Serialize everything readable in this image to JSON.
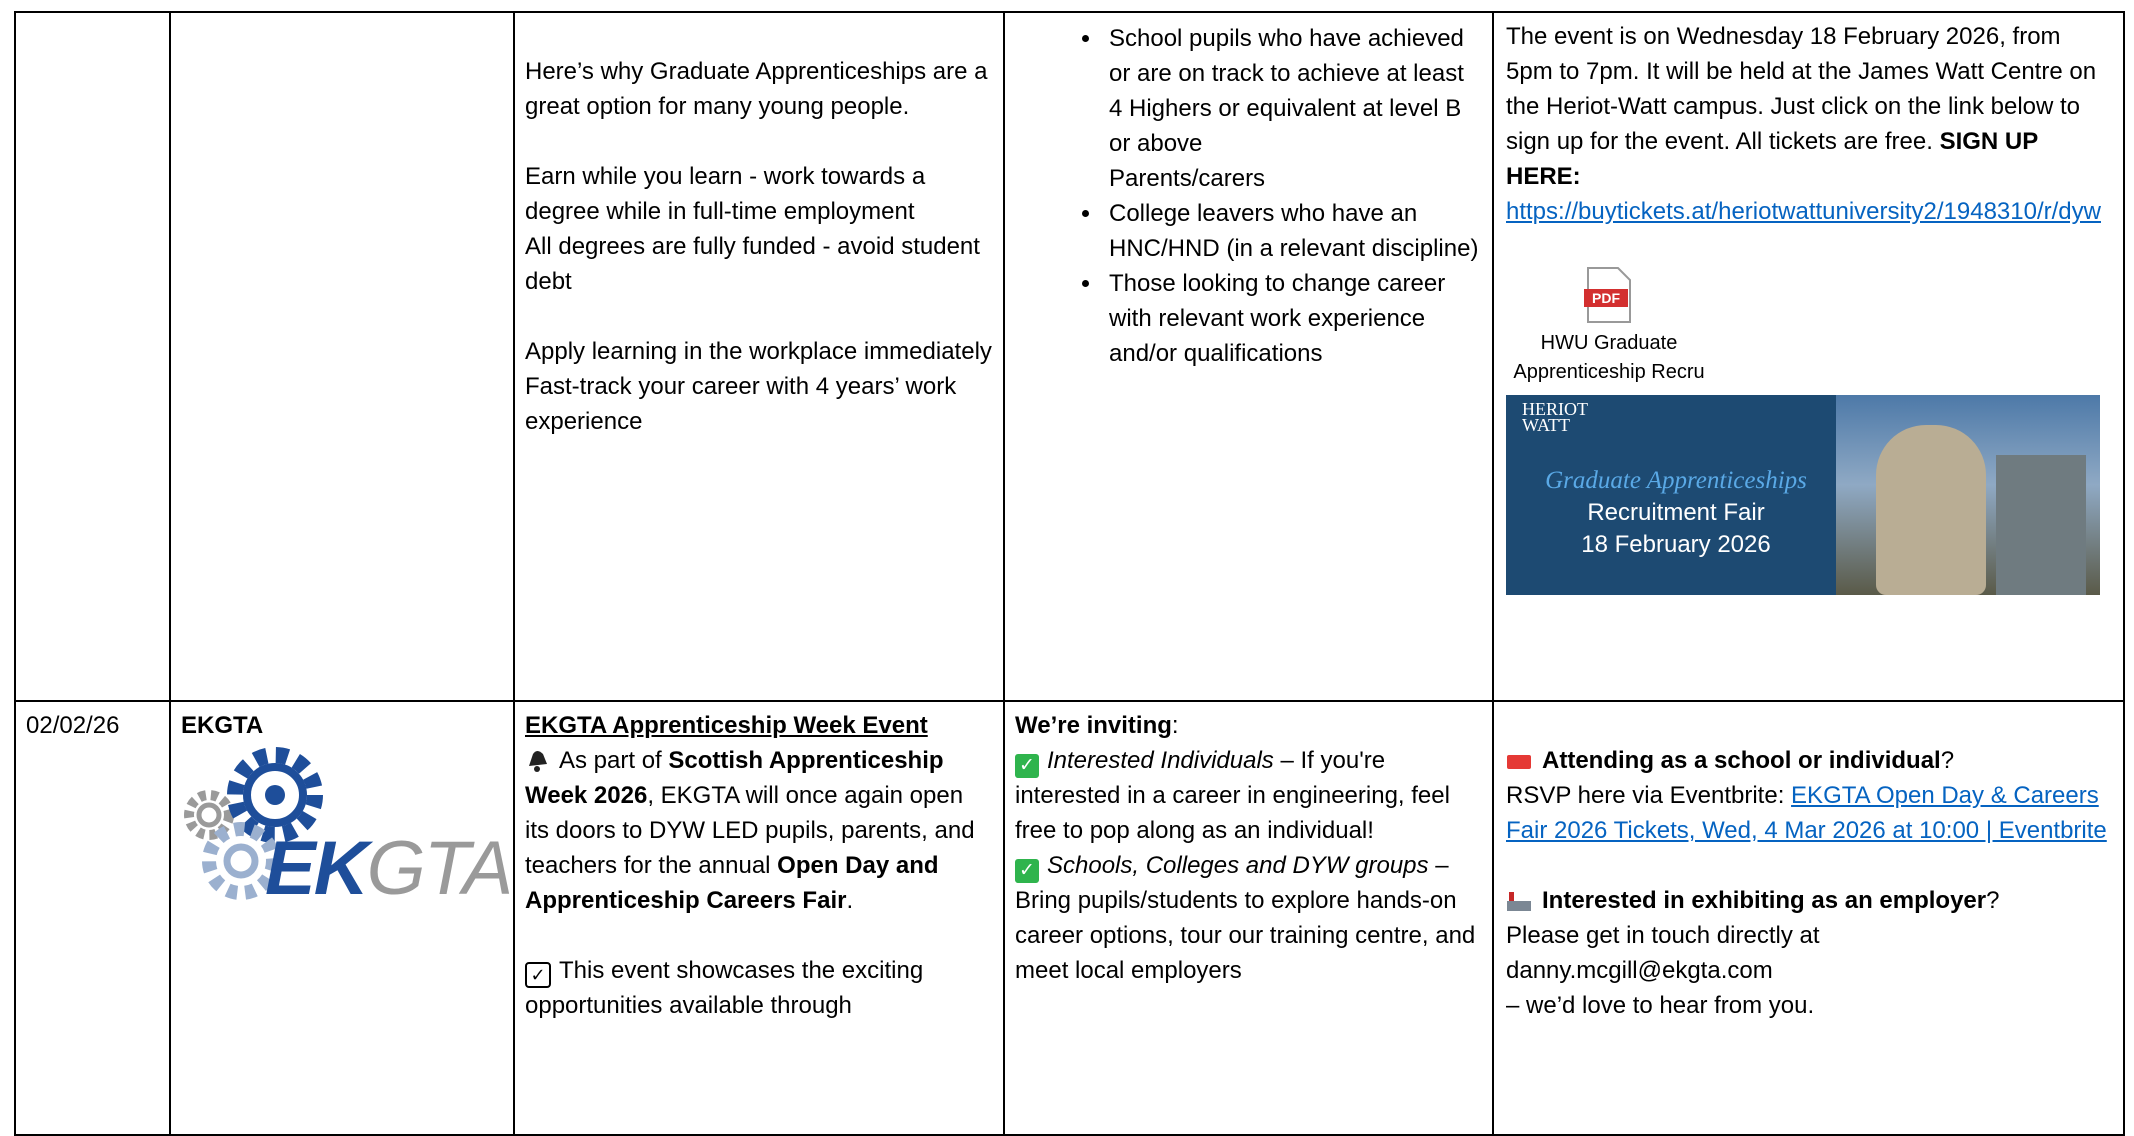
{
  "table": {
    "rows": [
      {
        "description": [
          "Here’s why Graduate Apprenticeships are a great option for many young people.",
          "Earn while you learn - work towards a degree while in full-time employment",
          "All degrees are fully funded - avoid student debt",
          "Apply learning in the workplace immediately",
          "Fast-track your career with 4 years’ work experience"
        ],
        "eligibility": [
          [
            "School pupils who have achieved or are on track to achieve at least 4 Highers or equivalent at level B or above",
            "Parents/carers"
          ],
          [
            "College leavers who have an HNC/HND (in a relevant discipline)"
          ],
          [
            "Those looking to change career with relevant work experience and/or qualifications"
          ]
        ],
        "details": {
          "text": "The event is on Wednesday 18 February 2026, from 5pm to 7pm. It will be held at the James Watt Centre on the Heriot-Watt campus. Just click on the link below to sign up for the event. All tickets are free. ",
          "signup": "SIGN UP HERE:",
          "link": "https://buytickets.at/heriotwattuniversity2/1948310/r/dyw",
          "attachment_type": "PDF",
          "attachment": "HWU Graduate Apprenticeship Recru",
          "banner": {
            "logo": [
              "HERIOT",
              "WATT"
            ],
            "subtitle": "Graduate Apprenticeships",
            "lines": [
              "Recruitment Fair",
              "18 February 2026"
            ]
          }
        }
      },
      {
        "date": "02/02/26",
        "organisation": "EKGTA",
        "logo": [
          "EK",
          "GTA"
        ],
        "description": {
          "title": "EKGTA Apprenticeship Week Event",
          "intro": [
            "As part of ",
            "Scottish Apprenticeship Week 2026",
            ", EKGTA will once again open its doors to DYW LED pupils, parents, and teachers for the annual ",
            "Open Day and Apprenticeship Careers Fair",
            "."
          ],
          "showcase": "This event showcases the exciting opportunities available through"
        },
        "audience": {
          "heading": [
            "We’re inviting",
            ":"
          ],
          "items": [
            [
              "Interested Individuals",
              " – If you're interested in a career in engineering, feel free to pop along as an individual!"
            ],
            [
              "Schools, Colleges and DYW groups",
              " – Bring pupils/students to explore hands-on career options, tour our training centre, and meet local employers"
            ]
          ]
        },
        "contact": {
          "attend": [
            "Attending as a school or individual",
            "?"
          ],
          "rsvp": "RSVP here via Eventbrite: ",
          "rsvp_link": "EKGTA Open Day & Careers Fair 2026 Tickets, Wed, 4 Mar 2026 at 10:00 | Eventbrite",
          "exhibit": [
            "Interested in exhibiting as an employer",
            "?"
          ],
          "lines": [
            "Please get in touch directly at",
            "danny.mcgill@ekgta.com",
            "– we’d love to hear from you."
          ]
        }
      }
    ]
  }
}
